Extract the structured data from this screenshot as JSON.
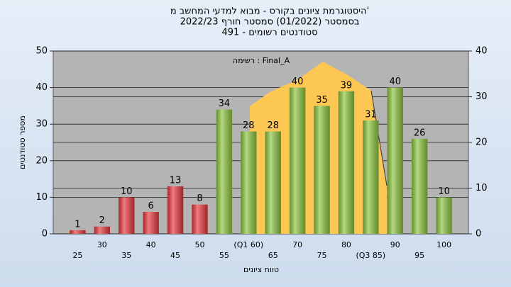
{
  "chart_data": {
    "type": "bar",
    "title": [
      "היסטוגרמת ציונים בקורס - מבוא למדעי המחשב מ'",
      "בסמסטר  (01/2022)  סמסטר חורף 2022/23",
      "סטודנטים רשומים - 491"
    ],
    "annotation": "רשימה : Final_A",
    "x_label": "טווח ציונים",
    "y_label": "מספר סטודנטים",
    "categories": [
      "25",
      "30",
      "35",
      "40",
      "45",
      "50",
      "55",
      "(Q1 60)",
      "65",
      "70",
      "75",
      "80",
      "(Q3 85)",
      "90",
      "95",
      "100"
    ],
    "values": [
      1,
      2,
      10,
      6,
      13,
      8,
      34,
      28,
      28,
      40,
      35,
      39,
      31,
      40,
      26,
      10
    ],
    "colors": [
      "#e8383d",
      "#e8383d",
      "#e8383d",
      "#e8383d",
      "#e8383d",
      "#e8383d",
      "#8dc63f",
      "#8dc63f",
      "#8dc63f",
      "#8dc63f",
      "#8dc63f",
      "#8dc63f",
      "#8dc63f",
      "#8dc63f",
      "#8dc63f",
      "#8dc63f"
    ],
    "ylim": [
      0,
      50
    ],
    "yticks": [
      0,
      10,
      20,
      30,
      40,
      50
    ],
    "y2lim": [
      0,
      40
    ],
    "y2ticks": [
      0,
      10,
      20,
      30,
      40
    ],
    "grid": true
  }
}
